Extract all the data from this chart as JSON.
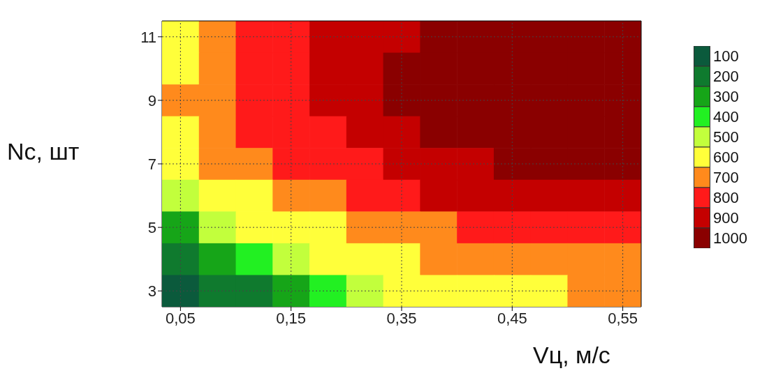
{
  "chart_data": {
    "type": "heatmap",
    "xlabel": "Vц, м/с",
    "ylabel": "Nс, шт",
    "grid": true,
    "categories": [
      "0,05",
      null,
      null,
      "0,15",
      null,
      null,
      "0,35",
      null,
      null,
      "0,45",
      null,
      null,
      "0,55"
    ],
    "y_categories": [
      "11",
      null,
      "9",
      null,
      "7",
      null,
      "5",
      null,
      "3"
    ],
    "cells": [
      [
        600,
        700,
        800,
        800,
        900,
        900,
        900,
        1000,
        1000,
        1000,
        1000,
        1000,
        1000
      ],
      [
        600,
        700,
        800,
        800,
        900,
        900,
        1000,
        1000,
        1000,
        1000,
        1000,
        1000,
        1000
      ],
      [
        700,
        700,
        800,
        800,
        900,
        900,
        1000,
        1000,
        1000,
        1000,
        1000,
        1000,
        1000
      ],
      [
        600,
        700,
        800,
        800,
        800,
        900,
        900,
        1000,
        1000,
        1000,
        1000,
        1000,
        1000
      ],
      [
        600,
        700,
        700,
        800,
        800,
        800,
        900,
        900,
        900,
        1000,
        1000,
        1000,
        1000
      ],
      [
        500,
        600,
        600,
        700,
        700,
        800,
        800,
        900,
        900,
        900,
        900,
        900,
        900
      ],
      [
        300,
        500,
        600,
        600,
        600,
        700,
        700,
        700,
        800,
        800,
        800,
        800,
        800
      ],
      [
        200,
        300,
        400,
        500,
        600,
        600,
        600,
        700,
        700,
        700,
        700,
        700,
        700
      ],
      [
        100,
        200,
        200,
        300,
        400,
        500,
        600,
        600,
        600,
        600,
        600,
        700,
        700
      ]
    ],
    "clim": [
      50,
      1050
    ],
    "cticks": [
      100,
      200,
      300,
      400,
      500,
      600,
      700,
      800,
      900,
      1000
    ],
    "colors": [
      "#0b5a3c",
      "#0f7a2e",
      "#16a518",
      "#22f022",
      "#c2ff3c",
      "#ffff3a",
      "#ff8a1c",
      "#ff1a1a",
      "#c40000",
      "#8a0000"
    ]
  }
}
